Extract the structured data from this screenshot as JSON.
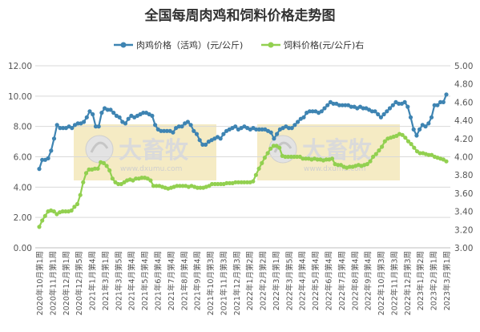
{
  "colors": {
    "meat": "#3E84B2",
    "feed": "#92D050",
    "grid": "#D9D9D9",
    "axis_text": "#555555",
    "title_text": "#333333",
    "watermark_bg": "#F5EBC4"
  },
  "watermark": {
    "brand": "大畜牧",
    "url": "www.dxumu.com"
  },
  "chart_data": {
    "type": "line",
    "title": "全国每周肉鸡和饲料价格走势图",
    "legend_position": "top",
    "grid": true,
    "y_left": {
      "min": 0,
      "max": 12,
      "step": 2,
      "tick_labels": [
        "0.00",
        "2.00",
        "4.00",
        "6.00",
        "8.00",
        "10.00",
        "12.00"
      ]
    },
    "y_right": {
      "min": 3.0,
      "max": 5.0,
      "step": 0.2,
      "tick_labels": [
        "3.00",
        "3.20",
        "3.40",
        "3.60",
        "3.80",
        "4.00",
        "4.20",
        "4.40",
        "4.60",
        "4.80",
        "5.00"
      ]
    },
    "x_tick_labels": [
      "2020年10月第1周",
      "2020年11月第1周",
      "2020年12月第1周",
      "2020年12月第5周",
      "2021年1月第4周",
      "2021年3月第1周",
      "2021年3月第5周",
      "2021年4月第4周",
      "2021年5月第4周",
      "2021年6月第4周",
      "2021年7月第4周",
      "2021年8月第4周",
      "2021年9月第4周",
      "2021年10月第3周",
      "2021年11月第3周",
      "2021年12月第3周",
      "2022年1月第2周",
      "2022年2月第2周",
      "2022年3月第1周",
      "2022年3月第5周",
      "2022年4月第4周",
      "2022年5月第4周",
      "2022年6月第4周",
      "2022年7月第4周",
      "2022年8月第4周",
      "2022年9月第4周",
      "2022年10月第3周",
      "2022年11月第3周",
      "2022年12月第3周",
      "2023年1月第2周",
      "2023年2月第1周",
      "2023年3月第1周"
    ],
    "series": [
      {
        "name": "肉鸡价格（活鸡）(元/公斤)",
        "axis": "left",
        "values": [
          5.2,
          5.8,
          5.8,
          5.9,
          6.4,
          7.2,
          8.1,
          7.9,
          7.9,
          7.9,
          8.0,
          7.9,
          8.1,
          8.2,
          8.2,
          8.3,
          8.6,
          9.0,
          8.8,
          8.0,
          8.0,
          8.9,
          9.2,
          9.1,
          9.1,
          8.9,
          8.7,
          8.6,
          8.3,
          8.2,
          8.5,
          8.7,
          8.6,
          8.7,
          8.8,
          8.9,
          8.9,
          8.8,
          8.7,
          8.1,
          7.8,
          7.7,
          7.7,
          7.7,
          7.7,
          7.6,
          7.9,
          8.0,
          8.0,
          8.2,
          8.3,
          8.1,
          7.7,
          7.5,
          7.1,
          6.8,
          6.8,
          7.0,
          7.1,
          7.2,
          7.3,
          7.2,
          7.5,
          7.7,
          7.8,
          7.9,
          8.0,
          7.8,
          7.9,
          8.0,
          7.9,
          7.8,
          7.9,
          7.8,
          7.8,
          7.8,
          7.8,
          7.7,
          7.6,
          7.2,
          7.5,
          7.8,
          7.9,
          8.0,
          7.9,
          7.9,
          8.1,
          8.3,
          8.5,
          8.6,
          8.9,
          9.0,
          9.0,
          9.0,
          8.9,
          9.0,
          9.2,
          9.4,
          9.6,
          9.5,
          9.5,
          9.4,
          9.4,
          9.4,
          9.4,
          9.3,
          9.3,
          9.2,
          9.3,
          9.2,
          9.2,
          9.1,
          9.0,
          9.0,
          8.8,
          8.6,
          8.8,
          9.0,
          9.2,
          9.4,
          9.6,
          9.5,
          9.5,
          9.6,
          9.3,
          8.6,
          7.8,
          7.4,
          7.8,
          8.1,
          8.0,
          8.2,
          8.6,
          9.4,
          9.4,
          9.6,
          9.6,
          10.1
        ]
      },
      {
        "name": "饲料价格(元/公斤)右",
        "axis": "right",
        "values": [
          3.23,
          3.3,
          3.35,
          3.4,
          3.41,
          3.4,
          3.37,
          3.39,
          3.4,
          3.4,
          3.4,
          3.41,
          3.45,
          3.48,
          3.58,
          3.72,
          3.82,
          3.86,
          3.86,
          3.87,
          3.87,
          3.94,
          3.93,
          3.9,
          3.85,
          3.76,
          3.72,
          3.7,
          3.7,
          3.72,
          3.74,
          3.75,
          3.74,
          3.76,
          3.76,
          3.77,
          3.77,
          3.76,
          3.74,
          3.68,
          3.68,
          3.68,
          3.67,
          3.66,
          3.65,
          3.66,
          3.67,
          3.68,
          3.68,
          3.68,
          3.68,
          3.67,
          3.68,
          3.67,
          3.66,
          3.66,
          3.66,
          3.67,
          3.68,
          3.7,
          3.7,
          3.7,
          3.7,
          3.7,
          3.71,
          3.71,
          3.71,
          3.72,
          3.72,
          3.72,
          3.72,
          3.72,
          3.72,
          3.73,
          3.8,
          3.87,
          3.93,
          3.99,
          4.04,
          4.09,
          4.12,
          4.12,
          4.1,
          4.01,
          4.0,
          4.0,
          4.0,
          4.0,
          4.0,
          4.0,
          3.98,
          3.98,
          3.98,
          3.97,
          3.98,
          3.97,
          3.97,
          3.96,
          3.97,
          3.97,
          3.98,
          3.92,
          3.91,
          3.91,
          3.89,
          3.88,
          3.89,
          3.89,
          3.9,
          3.91,
          3.9,
          3.91,
          3.92,
          3.95,
          4.0,
          4.03,
          4.07,
          4.11,
          4.17,
          4.2,
          4.21,
          4.22,
          4.23,
          4.25,
          4.24,
          4.21,
          4.17,
          4.14,
          4.1,
          4.06,
          4.04,
          4.04,
          4.03,
          4.02,
          4.02,
          4.0,
          3.99,
          3.98,
          3.97,
          3.95
        ]
      }
    ]
  }
}
